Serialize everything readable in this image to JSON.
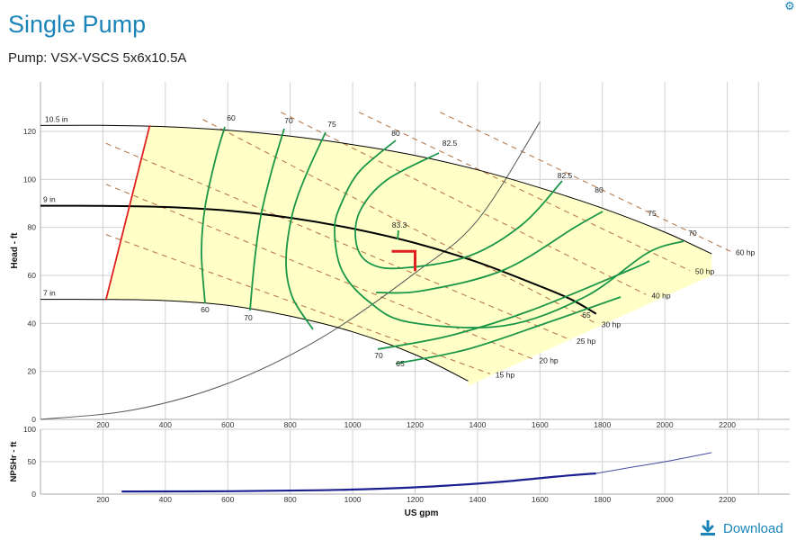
{
  "header": {
    "title": "Single Pump",
    "subtitle": "Pump: VSX-VSCS 5x6x10.5A",
    "settings_icon": "gear-icon"
  },
  "footer": {
    "download_label": "Download",
    "download_icon": "download-icon"
  },
  "colors": {
    "accent": "#1a84b8",
    "efficiency": "#1a9648",
    "power": "#b97a4e",
    "impeller": "#000000",
    "mcsf": "#e02020",
    "op_point": "#e02020",
    "fill": "#ffffc4",
    "npsh": "#1b1f8f",
    "grid": "#d0d0d0"
  },
  "chart_data": [
    {
      "type": "line",
      "title": "",
      "xlabel": "",
      "ylabel": "Head - ft",
      "xlim": [
        0,
        2400
      ],
      "ylim": [
        0,
        140
      ],
      "xticks": [
        200,
        400,
        600,
        800,
        1000,
        1200,
        1400,
        1600,
        1800,
        2000,
        2200
      ],
      "yticks": [
        0,
        20,
        40,
        60,
        80,
        100,
        120
      ],
      "grid": true,
      "impellers": [
        {
          "label": "10.5 in",
          "x": [
            0,
            200,
            400,
            600,
            800,
            1000,
            1200,
            1400,
            1600,
            1800,
            2000,
            2150
          ],
          "y": [
            122.5,
            122.5,
            122,
            120.5,
            118,
            114.5,
            110,
            104,
            96.5,
            88,
            78,
            69
          ]
        },
        {
          "label": "9 in",
          "x": [
            0,
            200,
            400,
            600,
            800,
            1000,
            1200,
            1400,
            1600,
            1700,
            1780
          ],
          "y": [
            89,
            89,
            88.5,
            87,
            84,
            79.5,
            73.5,
            65.5,
            55.5,
            50,
            44
          ]
        },
        {
          "label": "7 in",
          "x": [
            0,
            200,
            400,
            600,
            800,
            1000,
            1200,
            1370
          ],
          "y": [
            50,
            50,
            49.5,
            47.5,
            43,
            36.5,
            27,
            16
          ]
        }
      ],
      "efficiency_labels": [
        "60",
        "70",
        "75",
        "80",
        "82.5",
        "83.3",
        "82.5",
        "80",
        "75",
        "70",
        "65",
        "60",
        "70",
        "70",
        "65"
      ],
      "power_curves": [
        {
          "label": "15 hp",
          "x": [
            210,
            1440
          ],
          "y": [
            77,
            19
          ]
        },
        {
          "label": "20 hp",
          "x": [
            210,
            1580
          ],
          "y": [
            98,
            25
          ]
        },
        {
          "label": "25 hp",
          "x": [
            210,
            1700
          ],
          "y": [
            115,
            33
          ]
        },
        {
          "label": "30 hp",
          "x": [
            520,
            1780
          ],
          "y": [
            125,
            40
          ]
        },
        {
          "label": "40 hp",
          "x": [
            770,
            1940
          ],
          "y": [
            128,
            52
          ]
        },
        {
          "label": "50 hp",
          "x": [
            1020,
            2080
          ],
          "y": [
            128,
            62
          ]
        },
        {
          "label": "60 hp",
          "x": [
            1280,
            2210
          ],
          "y": [
            128,
            70
          ]
        }
      ],
      "system_curve": {
        "x": [
          0,
          300,
          600,
          900,
          1200,
          1400,
          1600
        ],
        "y": [
          0,
          4,
          15,
          34,
          61,
          83,
          124
        ]
      },
      "min_flow_line": {
        "x": [
          210,
          350
        ],
        "y": [
          50,
          122.5
        ]
      },
      "operating_point": {
        "x": 1200,
        "y": 70
      }
    },
    {
      "type": "line",
      "title": "",
      "xlabel": "US gpm",
      "ylabel": "NPSHr - ft",
      "xlim": [
        0,
        2400
      ],
      "ylim": [
        0,
        100
      ],
      "xticks": [
        200,
        400,
        600,
        800,
        1000,
        1200,
        1400,
        1600,
        1800,
        2000,
        2200
      ],
      "yticks": [
        0,
        50,
        100
      ],
      "grid": true,
      "series": [
        {
          "x": [
            260,
            600,
            900,
            1100,
            1300,
            1500,
            1650,
            1780
          ],
          "y": [
            4,
            4.5,
            6,
            8.5,
            13,
            20,
            27,
            32
          ],
          "weight": "bold"
        },
        {
          "x": [
            1780,
            1900,
            2000,
            2150
          ],
          "y": [
            32,
            42,
            50,
            64
          ],
          "weight": "thin"
        }
      ]
    }
  ]
}
